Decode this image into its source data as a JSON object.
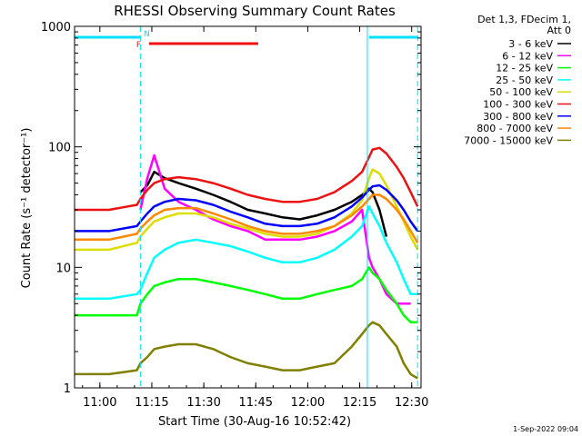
{
  "chart_data": {
    "type": "line",
    "title": "RHESSI Observing Summary Count Rates",
    "xlabel": "Start Time (30-Aug-16 10:52:42)",
    "ylabel": "Count Rate (s⁻¹ detector⁻¹)",
    "y_scale": "log",
    "ylim": [
      1,
      1000
    ],
    "xlim_minutes": [
      0,
      100
    ],
    "x_ticks": [
      "11:00",
      "11:15",
      "11:30",
      "11:45",
      "12:00",
      "12:15",
      "12:30"
    ],
    "x_tick_minutes": [
      7.3,
      22.3,
      37.3,
      52.3,
      67.3,
      82.3,
      97.3
    ],
    "y_ticks": [
      "1",
      "10",
      "100",
      "1000"
    ],
    "y_tick_values": [
      1,
      10,
      100,
      1000
    ],
    "legend_header": [
      "Det 1,3, FDecim 1,",
      "Att 0"
    ],
    "legend_position": "right",
    "flags": [
      {
        "label": "N",
        "color": "#00e0ff",
        "segments": [
          [
            0,
            19
          ],
          [
            85,
            99
          ]
        ]
      },
      {
        "label": "F",
        "color": "#ee1111",
        "segments": [
          [
            21.5,
            53
          ]
        ]
      }
    ],
    "boundaries_minutes": [
      0,
      19,
      84.5,
      99
    ],
    "boundary_color": "#00e0ff",
    "x": [
      0,
      10,
      18,
      19,
      21,
      23,
      26,
      30,
      35,
      40,
      45,
      50,
      55,
      60,
      65,
      70,
      75,
      80,
      83,
      85,
      86,
      88,
      90,
      93,
      95,
      97,
      99
    ],
    "series": [
      {
        "name": "3 - 6 keV",
        "color": "#000000",
        "values": [
          null,
          null,
          null,
          42,
          48,
          62,
          55,
          50,
          45,
          40,
          35,
          30,
          28,
          26,
          25,
          27,
          30,
          35,
          40,
          45,
          42,
          30,
          18,
          null,
          null,
          null,
          null
        ]
      },
      {
        "name": "6 - 12 keV",
        "color": "#ff00ff",
        "values": [
          null,
          null,
          null,
          30,
          55,
          85,
          45,
          35,
          30,
          25,
          22,
          20,
          17,
          17,
          17,
          18,
          20,
          24,
          30,
          12,
          10,
          8,
          6,
          5,
          5,
          5,
          null
        ]
      },
      {
        "name": "12 - 25 keV",
        "color": "#00ff00",
        "values": [
          4,
          4,
          4,
          5,
          6,
          7,
          7.5,
          8,
          8,
          7.5,
          7,
          6.5,
          6,
          5.5,
          5.5,
          6,
          6.5,
          7,
          8,
          10,
          9,
          8,
          6.5,
          5,
          4,
          3.5,
          3.5
        ]
      },
      {
        "name": "25 - 50 keV",
        "color": "#00ffff",
        "values": [
          5.5,
          5.5,
          6,
          6.5,
          9,
          12,
          14,
          16,
          17,
          16,
          15,
          13.5,
          12,
          11,
          11,
          12,
          14,
          18,
          22,
          32,
          28,
          22,
          16,
          11,
          8,
          6,
          6
        ]
      },
      {
        "name": "50 - 100 keV",
        "color": "#dddd00",
        "values": [
          14,
          14,
          16,
          18,
          21,
          24,
          26,
          28,
          28,
          26,
          23,
          21,
          19,
          18,
          18,
          19,
          22,
          28,
          36,
          55,
          65,
          60,
          48,
          32,
          24,
          18,
          14
        ]
      },
      {
        "name": "100 - 300 keV",
        "color": "#ee1111",
        "values": [
          30,
          30,
          33,
          37,
          44,
          50,
          54,
          56,
          54,
          50,
          45,
          40,
          37,
          35,
          35,
          37,
          42,
          52,
          62,
          82,
          95,
          98,
          88,
          68,
          55,
          42,
          32
        ]
      },
      {
        "name": "300 - 800 keV",
        "color": "#0000ff",
        "values": [
          20,
          20,
          22,
          24,
          28,
          32,
          35,
          37,
          36,
          33,
          29,
          26,
          23,
          22,
          22,
          23,
          26,
          32,
          38,
          44,
          47,
          48,
          44,
          36,
          30,
          24,
          20
        ]
      },
      {
        "name": "800 - 7000 keV",
        "color": "#ff8800",
        "values": [
          17,
          17,
          19,
          21,
          24,
          27,
          30,
          31,
          31,
          28,
          25,
          22,
          20,
          19,
          19,
          20,
          22,
          27,
          32,
          37,
          40,
          40,
          37,
          30,
          25,
          20,
          16
        ]
      },
      {
        "name": "7000 - 15000 keV",
        "color": "#808000",
        "values": [
          1.3,
          1.3,
          1.4,
          1.6,
          1.8,
          2.1,
          2.2,
          2.3,
          2.3,
          2.1,
          1.8,
          1.6,
          1.5,
          1.4,
          1.4,
          1.5,
          1.6,
          2.2,
          2.8,
          3.3,
          3.5,
          3.3,
          2.8,
          2.2,
          1.6,
          1.3,
          1.2
        ]
      }
    ]
  },
  "footer_date": "1-Sep-2022 09:04"
}
